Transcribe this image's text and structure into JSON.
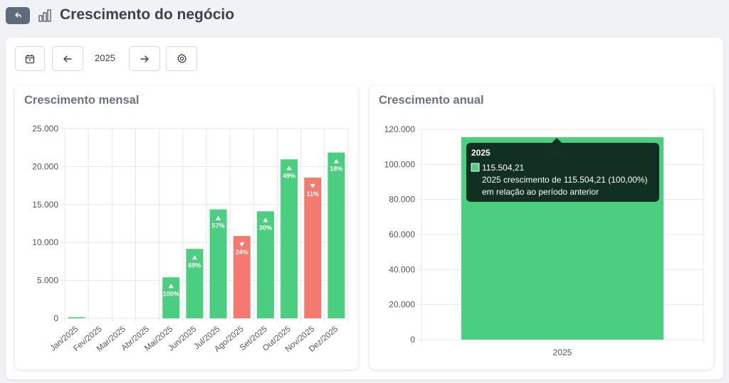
{
  "header": {
    "title": "Crescimento do negócio",
    "back_icon": "undo-arrow-icon",
    "title_icon": "bar-chart-icon"
  },
  "toolbar": {
    "calendar_icon": "calendar-icon",
    "prev_icon": "arrow-left-icon",
    "year": "2025",
    "next_icon": "arrow-right-icon",
    "settings_icon": "gear-icon"
  },
  "colors": {
    "growth": "#4cce80",
    "decline": "#f47a71",
    "tooltip_bg": "#0f2a1f"
  },
  "chart_data": [
    {
      "type": "bar",
      "title": "Crescimento mensal",
      "categories": [
        "Jan/2025",
        "Fev/2025",
        "Mar/2025",
        "Abr/2025",
        "Mai/2025",
        "Jun/2025",
        "Jul/2025",
        "Ago/2025",
        "Set/2025",
        "Out/2025",
        "Nov/2025",
        "Dez/2025"
      ],
      "values": [
        150,
        0,
        0,
        0,
        5400,
        9150,
        14350,
        10850,
        14100,
        20950,
        18550,
        21850
      ],
      "directions": [
        "",
        "",
        "",
        "",
        "up",
        "up",
        "up",
        "down",
        "up",
        "up",
        "down",
        "up"
      ],
      "labels": [
        "",
        "",
        "",
        "",
        "100%",
        "69%",
        "57%",
        "24%",
        "30%",
        "49%",
        "11%",
        "18%"
      ],
      "yticks": [
        "25.000",
        "20.000",
        "15.000",
        "10.000",
        "5.000",
        "0"
      ],
      "ylim": [
        0,
        25000
      ],
      "grid": true
    },
    {
      "type": "bar",
      "title": "Crescimento anual",
      "categories": [
        "2025"
      ],
      "values": [
        115504.21
      ],
      "labels": [
        "100%"
      ],
      "yticks": [
        "120.000",
        "100.000",
        "80.000",
        "60.000",
        "40.000",
        "20.000",
        "0"
      ],
      "ylim": [
        0,
        120000
      ],
      "grid": true,
      "tooltip": {
        "title": "2025",
        "value": "115.504,21",
        "line1": "2025 crescimento de 115.504,21 (100,00%)",
        "line2": "em relação ao período anterior"
      }
    }
  ]
}
